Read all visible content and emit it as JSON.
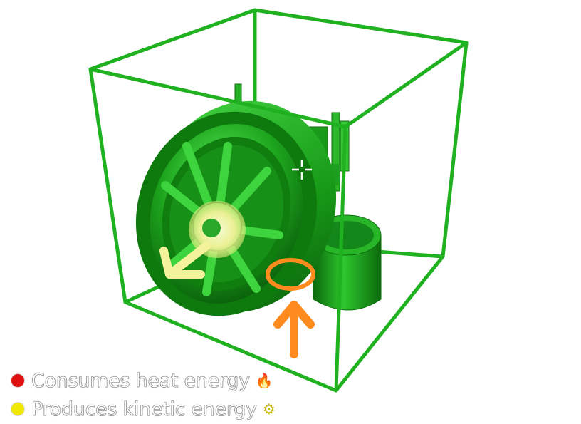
{
  "scene": {
    "object": "steam-engine-flywheel-model",
    "colors": {
      "bounding_box": "#1fb11f",
      "model_light": "#3ddc3d",
      "model_dark": "#0a6b0a",
      "consumes_marker": "#ff8a1e",
      "produces_marker": "#f4f29a"
    },
    "icons": [
      "crosshair-icon",
      "heat-input-arrow-icon",
      "kinetic-output-arrow-icon"
    ]
  },
  "legend": {
    "items": [
      {
        "label": "Consumes heat energy",
        "dot_color": "#e01010",
        "icon": "🔥",
        "icon_name": "fire-icon"
      },
      {
        "label": "Produces kinetic energy",
        "dot_color": "#f0e800",
        "icon": "⚙",
        "icon_name": "gear-icon"
      }
    ]
  }
}
